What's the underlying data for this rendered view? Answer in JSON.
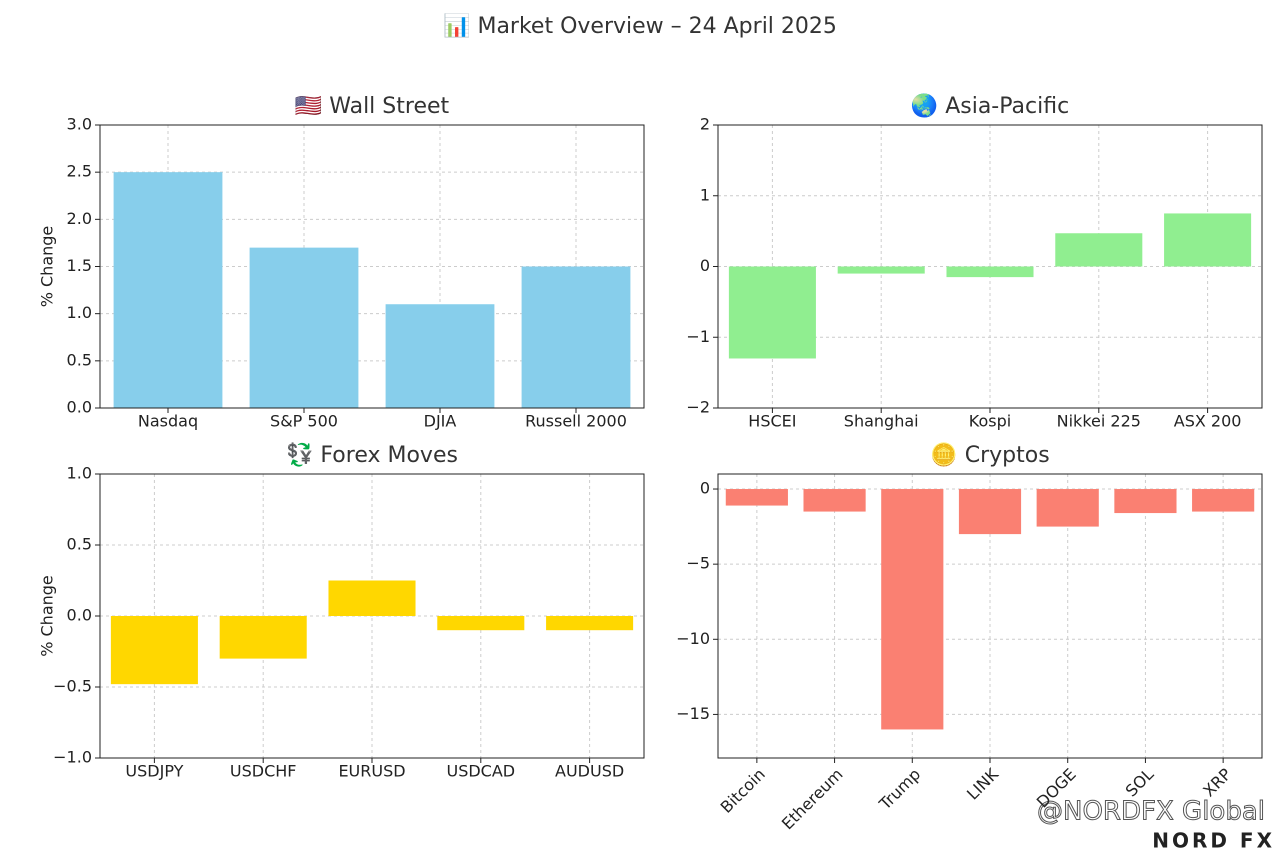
{
  "title": "📊 Market Overview – 24 April 2025",
  "watermark": "@NORDFX Global",
  "logo": "NORD FX",
  "chart_data": [
    {
      "type": "bar",
      "title": "🇺🇸 Wall Street",
      "ylabel": "% Change",
      "categories": [
        "Nasdaq",
        "S&P 500",
        "DJIA",
        "Russell 2000"
      ],
      "values": [
        2.5,
        1.7,
        1.1,
        1.5
      ],
      "color": "#87ceeb",
      "ylim": [
        0,
        3
      ],
      "yticks": [
        {
          "value": 0,
          "label": "0.0"
        },
        {
          "value": 0.5,
          "label": "0.5"
        },
        {
          "value": 1,
          "label": "1.0"
        },
        {
          "value": 1.5,
          "label": "1.5"
        },
        {
          "value": 2,
          "label": "2.0"
        },
        {
          "value": 2.5,
          "label": "2.5"
        },
        {
          "value": 3,
          "label": "3.0"
        }
      ],
      "grid": true,
      "rotate_labels": false
    },
    {
      "type": "bar",
      "title": "🌏 Asia-Pacific",
      "categories": [
        "HSCEI",
        "Shanghai",
        "Kospi",
        "Nikkei 225",
        "ASX 200"
      ],
      "values": [
        -1.3,
        -0.1,
        -0.15,
        0.47,
        0.75
      ],
      "color": "#90ee90",
      "ylim": [
        -2,
        2
      ],
      "yticks": [
        {
          "value": -2,
          "label": "−2"
        },
        {
          "value": -1,
          "label": "−1"
        },
        0,
        1,
        2
      ],
      "grid": true,
      "rotate_labels": false
    },
    {
      "type": "bar",
      "title": "💱 Forex Moves",
      "ylabel": "% Change",
      "categories": [
        "USDJPY",
        "USDCHF",
        "EURUSD",
        "USDCAD",
        "AUDUSD"
      ],
      "values": [
        -0.48,
        -0.3,
        0.25,
        -0.1,
        -0.1
      ],
      "color": "#ffd700",
      "ylim": [
        -1,
        1
      ],
      "yticks": [
        {
          "value": -1,
          "label": "−1.0"
        },
        {
          "value": -0.5,
          "label": "−0.5"
        },
        {
          "value": 0,
          "label": "0.0"
        },
        {
          "value": 0.5,
          "label": "0.5"
        },
        {
          "value": 1,
          "label": "1.0"
        }
      ],
      "grid": true,
      "rotate_labels": false
    },
    {
      "type": "bar",
      "title": "🪙 Cryptos",
      "categories": [
        "Bitcoin",
        "Ethereum",
        "Trump",
        "LINK",
        "DOGE",
        "SOL",
        "XRP"
      ],
      "values": [
        -1.1,
        -1.5,
        -16,
        -3,
        -2.5,
        -1.6,
        -1.5
      ],
      "color": "#fa8072",
      "ylim": [
        -17.9,
        1.0
      ],
      "yticks": [
        {
          "value": -15,
          "label": "−15"
        },
        {
          "value": -10,
          "label": "−10"
        },
        {
          "value": -5,
          "label": "−5"
        },
        0
      ],
      "grid": true,
      "rotate_labels": true
    }
  ]
}
